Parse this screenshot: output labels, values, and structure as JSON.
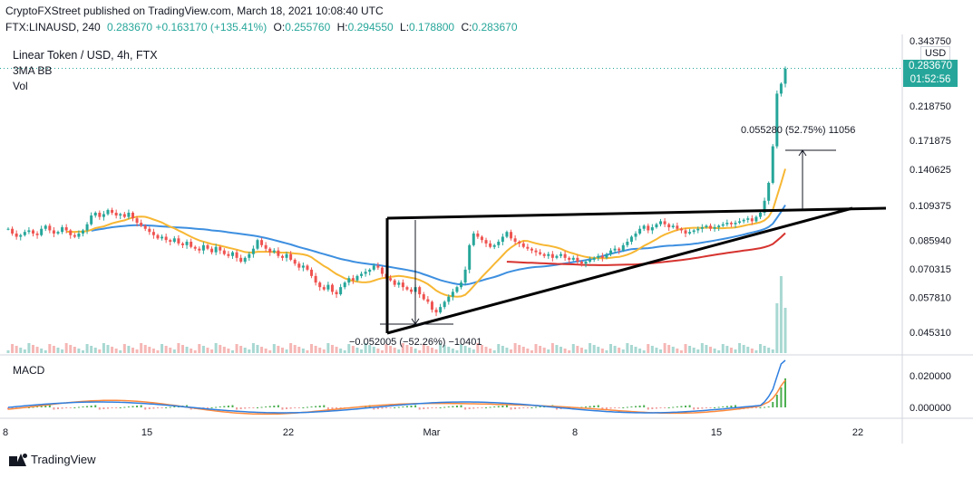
{
  "header": {
    "line1": "CryptoFXStreet published on TradingView.com, March 18, 2021 10:08:40 UTC",
    "symbol": "FTX:LINAUSD, 240",
    "change": "0.283670 +0.163170 (+135.41%)",
    "open_label": "O:",
    "open": "0.255760",
    "high_label": "H:",
    "high": "0.294550",
    "low_label": "L:",
    "low": "0.178800",
    "close_label": "C:",
    "close": "0.283670"
  },
  "legend": {
    "title": "Linear Token / USD, 4h, FTX",
    "indicator": "3MA BB",
    "volume": "Vol"
  },
  "macd_label": "MACD",
  "currency": "USD",
  "last_price": "0.283670",
  "countdown": "01:52:56",
  "footer_brand": "TradingView",
  "colors": {
    "up": "#26a69a",
    "down": "#ef5350",
    "ma_orange": "#f7b733",
    "ma_blue": "#3d8fe0",
    "ma_red": "#d6332f",
    "trend": "#000000",
    "macd_line": "#2f7fe0",
    "signal_line": "#ff8a3d"
  },
  "chart_data": {
    "type": "candlestick",
    "title": "Linear Token / USD, 4h, FTX",
    "price_axis_ticks": [
      "0.343750",
      "0.283670",
      "0.218750",
      "0.171875",
      "0.140625",
      "0.109375",
      "0.085940",
      "0.070315",
      "0.057810",
      "0.045310"
    ],
    "macd_axis_ticks": [
      "0.020000",
      "0.000000"
    ],
    "x_ticks": [
      "8",
      "15",
      "22",
      "Mar",
      "8",
      "15",
      "22"
    ],
    "measure_up": "0.055280 (52.75%) 11056",
    "measure_down": "−0.052005 (−52.26%) −10401",
    "close_series": [
      0.093,
      0.09,
      0.088,
      0.089,
      0.091,
      0.092,
      0.09,
      0.089,
      0.093,
      0.095,
      0.092,
      0.09,
      0.091,
      0.094,
      0.092,
      0.089,
      0.088,
      0.09,
      0.092,
      0.096,
      0.102,
      0.104,
      0.101,
      0.103,
      0.106,
      0.104,
      0.102,
      0.103,
      0.101,
      0.104,
      0.1,
      0.097,
      0.095,
      0.093,
      0.091,
      0.089,
      0.087,
      0.088,
      0.086,
      0.085,
      0.087,
      0.084,
      0.083,
      0.085,
      0.082,
      0.081,
      0.08,
      0.083,
      0.081,
      0.079,
      0.082,
      0.08,
      0.078,
      0.077,
      0.079,
      0.076,
      0.074,
      0.076,
      0.078,
      0.081,
      0.086,
      0.083,
      0.081,
      0.079,
      0.08,
      0.077,
      0.076,
      0.078,
      0.075,
      0.073,
      0.071,
      0.072,
      0.07,
      0.067,
      0.064,
      0.062,
      0.061,
      0.063,
      0.06,
      0.059,
      0.062,
      0.064,
      0.066,
      0.065,
      0.067,
      0.068,
      0.069,
      0.07,
      0.072,
      0.071,
      0.068,
      0.066,
      0.065,
      0.063,
      0.064,
      0.062,
      0.061,
      0.06,
      0.062,
      0.059,
      0.057,
      0.056,
      0.053,
      0.052,
      0.054,
      0.056,
      0.058,
      0.06,
      0.062,
      0.064,
      0.07,
      0.083,
      0.09,
      0.088,
      0.086,
      0.084,
      0.082,
      0.083,
      0.085,
      0.088,
      0.091,
      0.087,
      0.085,
      0.084,
      0.082,
      0.081,
      0.08,
      0.079,
      0.078,
      0.077,
      0.078,
      0.076,
      0.077,
      0.078,
      0.076,
      0.075,
      0.076,
      0.074,
      0.073,
      0.074,
      0.075,
      0.076,
      0.077,
      0.076,
      0.078,
      0.08,
      0.081,
      0.08,
      0.083,
      0.085,
      0.088,
      0.09,
      0.093,
      0.095,
      0.092,
      0.094,
      0.096,
      0.098,
      0.096,
      0.094,
      0.095,
      0.093,
      0.092,
      0.09,
      0.091,
      0.092,
      0.093,
      0.094,
      0.095,
      0.093,
      0.094,
      0.095,
      0.096,
      0.097,
      0.096,
      0.097,
      0.098,
      0.099,
      0.1,
      0.098,
      0.101,
      0.104,
      0.113,
      0.128,
      0.165,
      0.238,
      0.255,
      0.283
    ]
  }
}
